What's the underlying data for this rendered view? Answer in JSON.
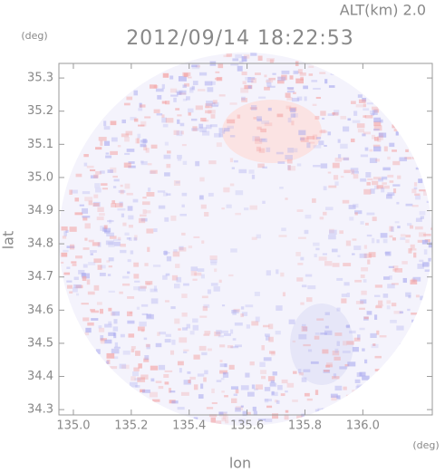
{
  "chart_data": {
    "type": "radar-field",
    "title": "2012/09/14 18:22:53",
    "annotation": "ALT(km) 2.0",
    "x_label": "lon",
    "y_label": "lat",
    "x_unit": "(deg)",
    "y_unit": "(deg)",
    "xlim": [
      134.95,
      136.24
    ],
    "ylim": [
      34.284,
      35.344
    ],
    "xticks": [
      {
        "value": 135,
        "label": "135.0"
      },
      135.2,
      135.4,
      135.6,
      135.8,
      {
        "value": 136,
        "label": "136.0"
      }
    ],
    "yticks": [
      34.3,
      34.4,
      34.5,
      34.6,
      34.7,
      34.8,
      34.9,
      {
        "value": 35,
        "label": "35.0"
      },
      35.1,
      35.2,
      35.3
    ]
  }
}
